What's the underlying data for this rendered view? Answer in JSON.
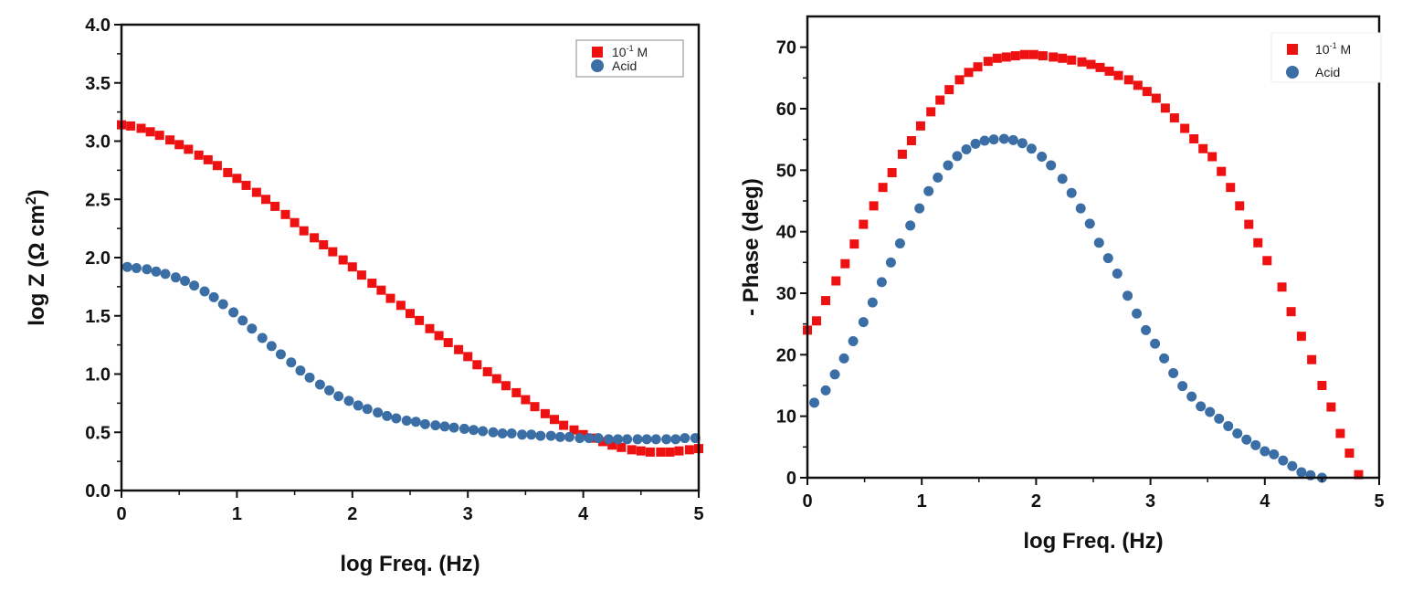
{
  "colors": {
    "series1": "#ee1111",
    "series2": "#3a6ea5",
    "axis": "#111111"
  },
  "chart_data": [
    {
      "type": "scatter",
      "title": "",
      "xlabel": "log Freq. (Hz)",
      "ylabel": "log Z (Ω cm²)",
      "xlim": [
        0,
        5
      ],
      "ylim": [
        0,
        4
      ],
      "xticks": [
        "0",
        "1",
        "2",
        "3",
        "4",
        "5"
      ],
      "yticks": [
        "0.0",
        "0.5",
        "1.0",
        "1.5",
        "2.0",
        "2.5",
        "3.0",
        "3.5",
        "4.0"
      ],
      "grid": false,
      "legend_position": "top-right",
      "series": [
        {
          "name": "10⁻¹ M",
          "marker": "square",
          "points": [
            [
              0.0,
              3.14
            ],
            [
              0.08,
              3.13
            ],
            [
              0.17,
              3.11
            ],
            [
              0.25,
              3.08
            ],
            [
              0.33,
              3.05
            ],
            [
              0.42,
              3.01
            ],
            [
              0.5,
              2.97
            ],
            [
              0.58,
              2.93
            ],
            [
              0.67,
              2.88
            ],
            [
              0.75,
              2.84
            ],
            [
              0.83,
              2.79
            ],
            [
              0.92,
              2.73
            ],
            [
              1.0,
              2.68
            ],
            [
              1.08,
              2.62
            ],
            [
              1.17,
              2.56
            ],
            [
              1.25,
              2.5
            ],
            [
              1.33,
              2.44
            ],
            [
              1.42,
              2.37
            ],
            [
              1.5,
              2.3
            ],
            [
              1.58,
              2.23
            ],
            [
              1.67,
              2.17
            ],
            [
              1.75,
              2.11
            ],
            [
              1.83,
              2.05
            ],
            [
              1.92,
              1.98
            ],
            [
              2.0,
              1.92
            ],
            [
              2.08,
              1.85
            ],
            [
              2.17,
              1.78
            ],
            [
              2.25,
              1.72
            ],
            [
              2.33,
              1.65
            ],
            [
              2.42,
              1.59
            ],
            [
              2.5,
              1.52
            ],
            [
              2.58,
              1.46
            ],
            [
              2.67,
              1.39
            ],
            [
              2.75,
              1.33
            ],
            [
              2.83,
              1.27
            ],
            [
              2.92,
              1.21
            ],
            [
              3.0,
              1.15
            ],
            [
              3.08,
              1.08
            ],
            [
              3.17,
              1.02
            ],
            [
              3.25,
              0.96
            ],
            [
              3.33,
              0.9
            ],
            [
              3.42,
              0.84
            ],
            [
              3.5,
              0.78
            ],
            [
              3.58,
              0.72
            ],
            [
              3.67,
              0.66
            ],
            [
              3.75,
              0.61
            ],
            [
              3.83,
              0.56
            ],
            [
              3.92,
              0.52
            ],
            [
              4.0,
              0.48
            ],
            [
              4.08,
              0.45
            ],
            [
              4.17,
              0.42
            ],
            [
              4.25,
              0.39
            ],
            [
              4.33,
              0.37
            ],
            [
              4.42,
              0.35
            ],
            [
              4.5,
              0.34
            ],
            [
              4.58,
              0.33
            ],
            [
              4.67,
              0.33
            ],
            [
              4.75,
              0.33
            ],
            [
              4.83,
              0.34
            ],
            [
              4.92,
              0.35
            ],
            [
              5.0,
              0.36
            ]
          ]
        },
        {
          "name": "Acid",
          "marker": "circle",
          "points": [
            [
              0.05,
              1.92
            ],
            [
              0.13,
              1.91
            ],
            [
              0.22,
              1.9
            ],
            [
              0.3,
              1.88
            ],
            [
              0.38,
              1.86
            ],
            [
              0.47,
              1.83
            ],
            [
              0.55,
              1.8
            ],
            [
              0.63,
              1.76
            ],
            [
              0.72,
              1.71
            ],
            [
              0.8,
              1.66
            ],
            [
              0.88,
              1.6
            ],
            [
              0.97,
              1.53
            ],
            [
              1.05,
              1.46
            ],
            [
              1.13,
              1.39
            ],
            [
              1.22,
              1.31
            ],
            [
              1.3,
              1.24
            ],
            [
              1.38,
              1.17
            ],
            [
              1.47,
              1.1
            ],
            [
              1.55,
              1.03
            ],
            [
              1.63,
              0.97
            ],
            [
              1.72,
              0.91
            ],
            [
              1.8,
              0.86
            ],
            [
              1.88,
              0.81
            ],
            [
              1.97,
              0.77
            ],
            [
              2.05,
              0.73
            ],
            [
              2.13,
              0.7
            ],
            [
              2.22,
              0.67
            ],
            [
              2.3,
              0.64
            ],
            [
              2.38,
              0.62
            ],
            [
              2.47,
              0.6
            ],
            [
              2.55,
              0.59
            ],
            [
              2.63,
              0.57
            ],
            [
              2.72,
              0.56
            ],
            [
              2.8,
              0.55
            ],
            [
              2.88,
              0.54
            ],
            [
              2.97,
              0.53
            ],
            [
              3.05,
              0.52
            ],
            [
              3.13,
              0.51
            ],
            [
              3.22,
              0.5
            ],
            [
              3.3,
              0.49
            ],
            [
              3.38,
              0.49
            ],
            [
              3.47,
              0.48
            ],
            [
              3.55,
              0.48
            ],
            [
              3.63,
              0.47
            ],
            [
              3.72,
              0.47
            ],
            [
              3.8,
              0.46
            ],
            [
              3.88,
              0.46
            ],
            [
              3.97,
              0.45
            ],
            [
              4.05,
              0.45
            ],
            [
              4.13,
              0.45
            ],
            [
              4.22,
              0.44
            ],
            [
              4.3,
              0.44
            ],
            [
              4.38,
              0.44
            ],
            [
              4.47,
              0.44
            ],
            [
              4.55,
              0.44
            ],
            [
              4.63,
              0.44
            ],
            [
              4.72,
              0.44
            ],
            [
              4.8,
              0.44
            ],
            [
              4.88,
              0.45
            ],
            [
              4.97,
              0.45
            ]
          ]
        }
      ]
    },
    {
      "type": "scatter",
      "title": "",
      "xlabel": "log Freq. (Hz)",
      "ylabel": "- Phase (deg)",
      "xlim": [
        0,
        5
      ],
      "ylim": [
        0,
        75
      ],
      "xticks": [
        "0",
        "1",
        "2",
        "3",
        "4",
        "5"
      ],
      "yticks": [
        "0",
        "10",
        "20",
        "30",
        "40",
        "50",
        "60",
        "70"
      ],
      "grid": false,
      "legend_position": "top-right",
      "series": [
        {
          "name": "10⁻¹ M",
          "marker": "square",
          "points": [
            [
              0.0,
              24.0
            ],
            [
              0.08,
              25.5
            ],
            [
              0.16,
              28.8
            ],
            [
              0.25,
              32.0
            ],
            [
              0.33,
              34.8
            ],
            [
              0.41,
              38.0
            ],
            [
              0.49,
              41.2
            ],
            [
              0.58,
              44.2
            ],
            [
              0.66,
              47.2
            ],
            [
              0.74,
              49.6
            ],
            [
              0.83,
              52.6
            ],
            [
              0.91,
              54.8
            ],
            [
              0.99,
              57.2
            ],
            [
              1.08,
              59.5
            ],
            [
              1.16,
              61.4
            ],
            [
              1.24,
              63.1
            ],
            [
              1.33,
              64.7
            ],
            [
              1.41,
              65.9
            ],
            [
              1.49,
              66.8
            ],
            [
              1.58,
              67.7
            ],
            [
              1.66,
              68.2
            ],
            [
              1.74,
              68.4
            ],
            [
              1.82,
              68.6
            ],
            [
              1.9,
              68.8
            ],
            [
              1.98,
              68.8
            ],
            [
              2.06,
              68.6
            ],
            [
              2.15,
              68.4
            ],
            [
              2.23,
              68.2
            ],
            [
              2.31,
              67.9
            ],
            [
              2.4,
              67.6
            ],
            [
              2.48,
              67.2
            ],
            [
              2.56,
              66.7
            ],
            [
              2.64,
              66.1
            ],
            [
              2.72,
              65.4
            ],
            [
              2.81,
              64.7
            ],
            [
              2.89,
              63.8
            ],
            [
              2.97,
              62.8
            ],
            [
              3.05,
              61.7
            ],
            [
              3.13,
              60.1
            ],
            [
              3.21,
              58.5
            ],
            [
              3.3,
              56.8
            ],
            [
              3.38,
              55.1
            ],
            [
              3.46,
              53.5
            ],
            [
              3.54,
              52.2
            ],
            [
              3.62,
              49.8
            ],
            [
              3.7,
              47.2
            ],
            [
              3.78,
              44.2
            ],
            [
              3.86,
              41.2
            ],
            [
              3.94,
              38.2
            ],
            [
              4.02,
              35.3
            ],
            [
              4.15,
              31.0
            ],
            [
              4.23,
              27.0
            ],
            [
              4.32,
              23.0
            ],
            [
              4.41,
              19.2
            ],
            [
              4.5,
              15.0
            ],
            [
              4.58,
              11.5
            ],
            [
              4.66,
              7.2
            ],
            [
              4.74,
              4.0
            ],
            [
              4.82,
              0.5
            ]
          ]
        },
        {
          "name": "Acid",
          "marker": "circle",
          "points": [
            [
              0.06,
              12.2
            ],
            [
              0.16,
              14.2
            ],
            [
              0.24,
              16.8
            ],
            [
              0.32,
              19.4
            ],
            [
              0.4,
              22.2
            ],
            [
              0.49,
              25.3
            ],
            [
              0.57,
              28.5
            ],
            [
              0.65,
              31.8
            ],
            [
              0.73,
              35.0
            ],
            [
              0.81,
              38.1
            ],
            [
              0.9,
              41.0
            ],
            [
              0.98,
              43.8
            ],
            [
              1.06,
              46.6
            ],
            [
              1.14,
              48.8
            ],
            [
              1.23,
              50.8
            ],
            [
              1.31,
              52.3
            ],
            [
              1.39,
              53.4
            ],
            [
              1.47,
              54.3
            ],
            [
              1.55,
              54.8
            ],
            [
              1.63,
              55.0
            ],
            [
              1.72,
              55.1
            ],
            [
              1.8,
              54.9
            ],
            [
              1.88,
              54.4
            ],
            [
              1.96,
              53.5
            ],
            [
              2.05,
              52.2
            ],
            [
              2.13,
              50.8
            ],
            [
              2.23,
              48.6
            ],
            [
              2.31,
              46.3
            ],
            [
              2.39,
              43.8
            ],
            [
              2.47,
              41.3
            ],
            [
              2.55,
              38.2
            ],
            [
              2.63,
              35.7
            ],
            [
              2.71,
              33.2
            ],
            [
              2.8,
              29.6
            ],
            [
              2.88,
              26.7
            ],
            [
              2.96,
              24.0
            ],
            [
              3.04,
              21.8
            ],
            [
              3.12,
              19.4
            ],
            [
              3.2,
              17.0
            ],
            [
              3.28,
              14.9
            ],
            [
              3.36,
              13.2
            ],
            [
              3.44,
              11.6
            ],
            [
              3.52,
              10.7
            ],
            [
              3.6,
              9.6
            ],
            [
              3.68,
              8.4
            ],
            [
              3.76,
              7.2
            ],
            [
              3.84,
              6.2
            ],
            [
              3.92,
              5.3
            ],
            [
              4.0,
              4.3
            ],
            [
              4.08,
              3.8
            ],
            [
              4.16,
              2.8
            ],
            [
              4.24,
              1.9
            ],
            [
              4.32,
              0.9
            ],
            [
              4.4,
              0.4
            ],
            [
              4.5,
              0.0
            ]
          ]
        }
      ]
    }
  ]
}
